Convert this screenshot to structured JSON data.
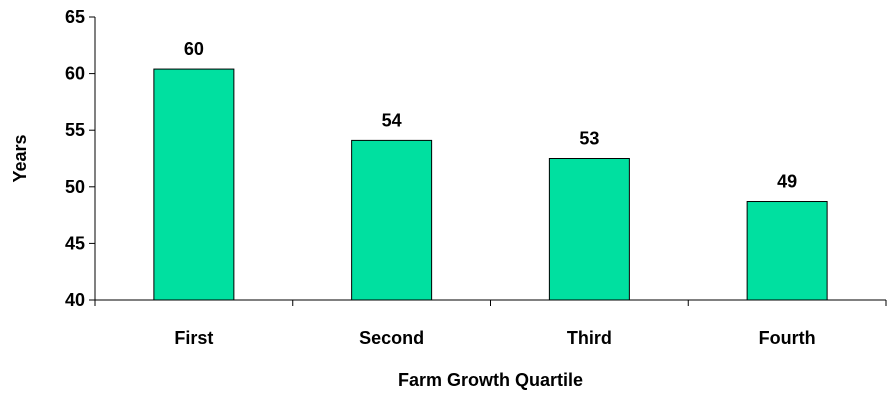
{
  "chart_data": {
    "type": "bar",
    "categories": [
      "First",
      "Second",
      "Third",
      "Fourth"
    ],
    "values": [
      60.4,
      54.1,
      52.5,
      48.7
    ],
    "data_labels": [
      "60",
      "54",
      "53",
      "49"
    ],
    "title": "",
    "xlabel": "Farm Growth Quartile",
    "ylabel": "Years",
    "ylim": [
      40,
      65
    ],
    "yticks": [
      "40",
      "45",
      "50",
      "55",
      "60",
      "65"
    ],
    "grid": false,
    "legend": "none",
    "bar_color": "#00e0a0",
    "bar_outline": "#000000"
  }
}
